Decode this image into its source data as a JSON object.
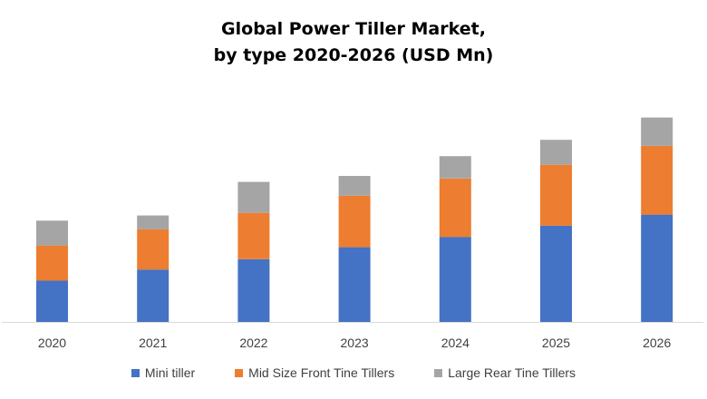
{
  "chart_data": {
    "type": "bar",
    "stacked": true,
    "title_lines": [
      "Global Power Tiller Market,",
      "by type 2020-2026 (USD Mn)"
    ],
    "categories": [
      "2020",
      "2021",
      "2022",
      "2023",
      "2024",
      "2025",
      "2026"
    ],
    "series": [
      {
        "name": "Mini tiller",
        "color": "#4472C4",
        "values": [
          48,
          61,
          73,
          87,
          99,
          112,
          125
        ]
      },
      {
        "name": "Mid Size Front Tine Tillers",
        "color": "#ED7D31",
        "values": [
          41,
          47,
          54,
          60,
          68,
          71,
          80
        ]
      },
      {
        "name": "Large Rear Tine Tillers",
        "color": "#A5A5A5",
        "values": [
          29,
          16,
          36,
          23,
          26,
          29,
          33
        ]
      }
    ],
    "ylim": [
      0,
      250
    ],
    "yaxis_visible": false,
    "grid": false,
    "legend_position": "bottom"
  }
}
